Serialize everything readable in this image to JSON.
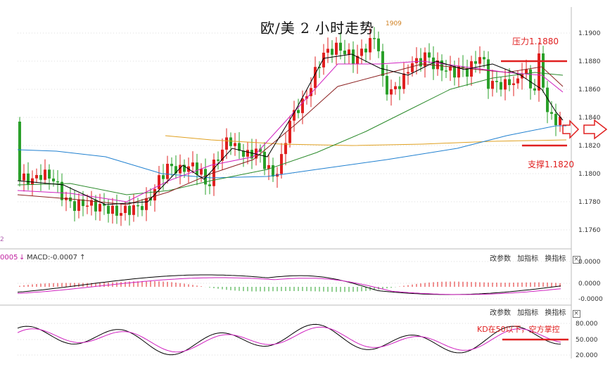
{
  "title": "欧/美 2 小时走势",
  "high_marker": "1909",
  "chart_data": [
    {
      "type": "candlestick",
      "title": "欧/美 2 小时走势",
      "y_ticks": [
        "1.1900",
        "1.1880",
        "1.1860",
        "1.1840",
        "1.1820",
        "1.1800",
        "1.1780",
        "1.1760"
      ],
      "ylim": [
        1.175,
        1.1912
      ],
      "grid": true,
      "moving_average_colors": [
        "#000000",
        "#d020c0",
        "#b8a0b8",
        "#8b2020",
        "#2a8a2a",
        "#2080d0",
        "#e0a020"
      ],
      "annotations": [
        {
          "text": "压力1.1880",
          "y": 1.188
        },
        {
          "text": "支撑1.1820",
          "y": 1.182
        }
      ]
    },
    {
      "type": "bar",
      "title": "MACD",
      "readout_prefix": "0005",
      "readout": "MACD:-0.0007",
      "y_ticks": [
        "0.0000",
        "0.0000",
        "-0.0000"
      ]
    },
    {
      "type": "line",
      "title": "KD",
      "y_ticks": [
        "80.000",
        "50.000",
        "20.000"
      ],
      "annotations": [
        {
          "text": "KD在50以下，空方掌控",
          "y": 50
        }
      ]
    }
  ],
  "toolbar": {
    "params": "改参数",
    "add": "加指标",
    "switch": "换指标",
    "close": "×"
  },
  "annotations": {
    "resistance": "压力1.1880",
    "support": "支撑1.1820",
    "kd_note": "KD在50以下，空方掌控"
  },
  "macd_panel": {
    "prefix": "0005",
    "readout": "MACD:-0.0007 ↑"
  },
  "axis_main": [
    "1.1900",
    "1.1880",
    "1.1860",
    "1.1840",
    "1.1820",
    "1.1800",
    "1.1780",
    "1.1760"
  ],
  "axis_macd": [
    "0.0000",
    "0.0000",
    "-0.0000"
  ],
  "axis_kd": [
    "80.000",
    "50.000",
    "20.000"
  ],
  "misc": {
    "corner_mark": "2"
  },
  "colors": {
    "bull": "#2aa02a",
    "bear": "#e02020",
    "annotation": "#e02020",
    "ma_fast": "#000000",
    "ma_pink": "#d020c0",
    "ma_green": "#2a8a2a",
    "ma_blue": "#2080d0",
    "ma_orange": "#e0a020",
    "ma_brown": "#8b2020"
  }
}
